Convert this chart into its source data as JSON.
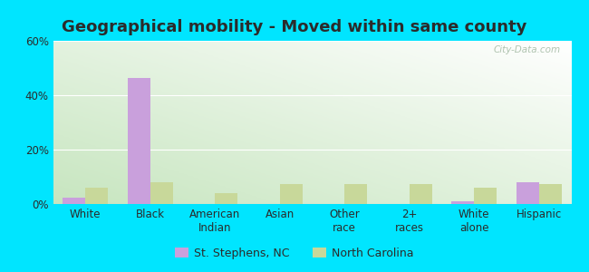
{
  "title": "Geographical mobility - Moved within same county",
  "categories": [
    "White",
    "Black",
    "American\nIndian",
    "Asian",
    "Other\nrace",
    "2+\nraces",
    "White\nalone",
    "Hispanic"
  ],
  "st_stephens_values": [
    2.5,
    46.5,
    0,
    0,
    0,
    0,
    1.0,
    8.0
  ],
  "nc_values": [
    6.0,
    8.0,
    4.0,
    7.5,
    7.5,
    7.5,
    6.0,
    7.5
  ],
  "bar_color_st": "#c9a0dc",
  "bar_color_nc": "#c8d89a",
  "ylim": [
    0,
    60
  ],
  "yticks": [
    0,
    20,
    40,
    60
  ],
  "ytick_labels": [
    "0%",
    "20%",
    "40%",
    "60%"
  ],
  "outer_background": "#00e5ff",
  "legend_label_st": "St. Stephens, NC",
  "legend_label_nc": "North Carolina",
  "bar_width": 0.35,
  "title_fontsize": 13,
  "tick_fontsize": 8.5,
  "legend_fontsize": 9,
  "title_color": "#2b2b2b"
}
